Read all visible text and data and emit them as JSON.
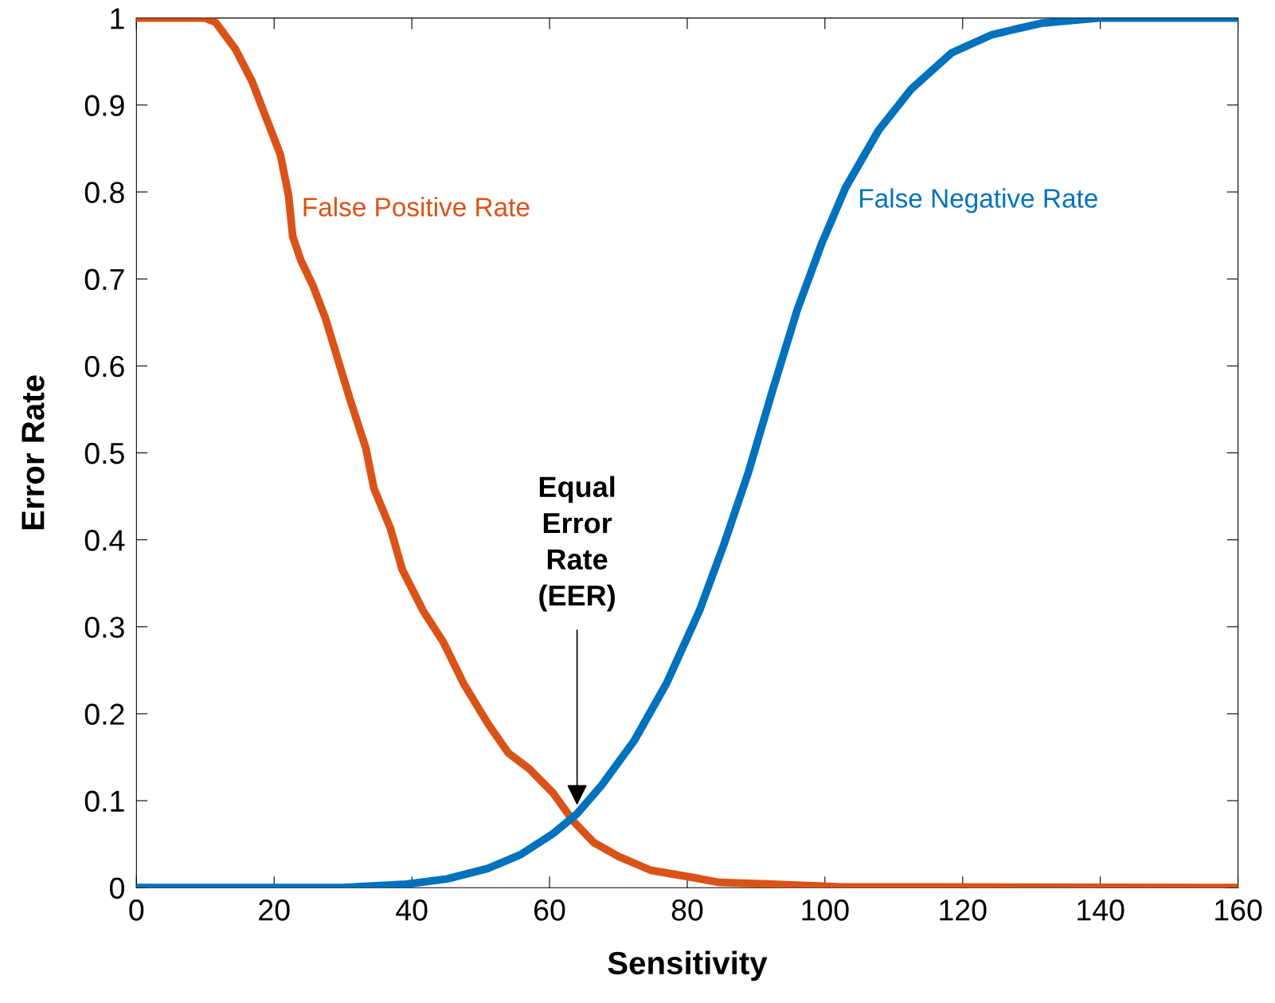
{
  "chart_data": {
    "type": "line",
    "xlabel": "Sensitivity",
    "ylabel": "Error Rate",
    "xlim": [
      0,
      160
    ],
    "xticks": [
      0,
      20,
      40,
      60,
      80,
      100,
      120,
      140,
      160
    ],
    "ylim": [
      0,
      1
    ],
    "yticks": [
      0,
      0.1,
      0.2,
      0.3,
      0.4,
      0.5,
      0.6,
      0.7,
      0.8,
      0.9,
      1
    ],
    "grid": false,
    "legend": false,
    "marker": "none",
    "line_style": "solid",
    "series": [
      {
        "name": "False Positive Rate",
        "color": "#d95319",
        "x": [
          0,
          10,
          11.5,
          14.4,
          16.8,
          19.1,
          20.9,
          22.1,
          22.7,
          23.9,
          25.6,
          27.4,
          29.2,
          31.0,
          33.3,
          34.5,
          36.9,
          38.6,
          41.6,
          44.6,
          47.5,
          51.1,
          54.0,
          57.0,
          60.5,
          63.5,
          66.4,
          70.0,
          74.7,
          80.6,
          84.7,
          92.4,
          101.9,
          160
        ],
        "values": [
          1,
          1,
          0.995,
          0.964,
          0.927,
          0.88,
          0.843,
          0.796,
          0.749,
          0.721,
          0.693,
          0.656,
          0.609,
          0.562,
          0.506,
          0.459,
          0.413,
          0.366,
          0.319,
          0.282,
          0.235,
          0.188,
          0.155,
          0.137,
          0.109,
          0.076,
          0.052,
          0.036,
          0.02,
          0.012,
          0.006,
          0.004,
          0.001,
          0
        ]
      },
      {
        "name": "False Negative Rate",
        "color": "#0072bd",
        "x": [
          0,
          30,
          39.2,
          45.1,
          51.0,
          55.8,
          60.5,
          64.0,
          67.6,
          72.3,
          77.0,
          81.8,
          85.3,
          88.9,
          92.4,
          96.0,
          99.5,
          103.0,
          107.8,
          112.5,
          118.4,
          124.3,
          131.4,
          139.7,
          160
        ],
        "values": [
          0,
          0,
          0.004,
          0.01,
          0.022,
          0.038,
          0.062,
          0.085,
          0.118,
          0.169,
          0.235,
          0.319,
          0.394,
          0.478,
          0.572,
          0.665,
          0.74,
          0.805,
          0.871,
          0.918,
          0.96,
          0.981,
          0.994,
          1,
          1
        ]
      }
    ],
    "annotations": [
      {
        "text": "Equal\nError\nRate\n(EER)",
        "x": 64,
        "y": 0.095
      }
    ]
  }
}
